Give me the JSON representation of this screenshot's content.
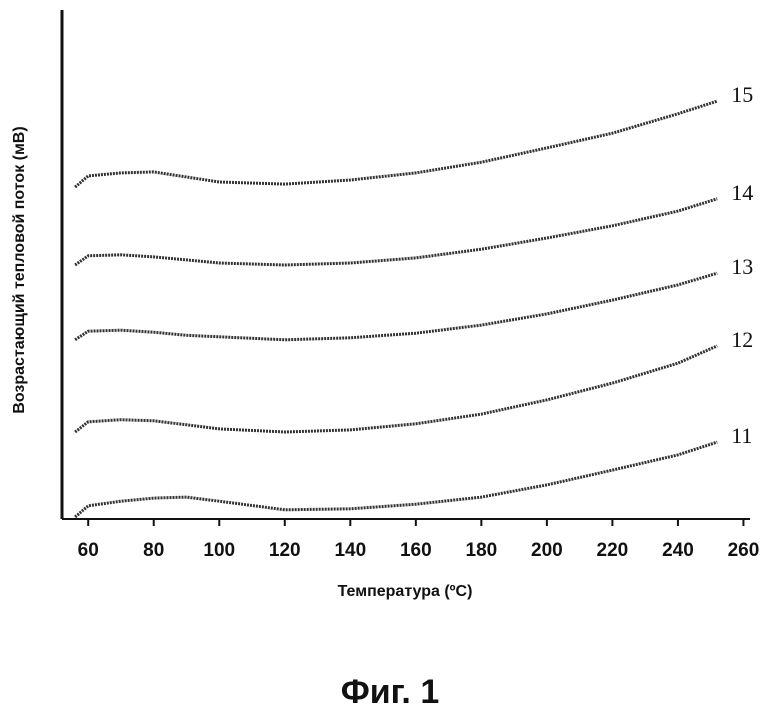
{
  "chart_data": {
    "type": "line",
    "caption": "Фиг. 1",
    "x_label": "Температура (ºC)",
    "y_label": "Возрастающий тепловой поток (мВ)",
    "x": [
      56,
      60,
      70,
      80,
      90,
      100,
      120,
      140,
      160,
      180,
      200,
      220,
      240,
      252
    ],
    "series": [
      {
        "name": "15",
        "color": "#333333",
        "values": [
          65.2,
          67.4,
          68.0,
          68.2,
          67.2,
          66.2,
          65.8,
          66.6,
          68.0,
          70.1,
          72.9,
          75.8,
          79.6,
          82.1
        ]
      },
      {
        "name": "14",
        "color": "#333333",
        "values": [
          49.9,
          51.7,
          51.9,
          51.5,
          50.9,
          50.3,
          49.9,
          50.3,
          51.3,
          53.0,
          55.2,
          57.6,
          60.5,
          62.9
        ]
      },
      {
        "name": "13",
        "color": "#333333",
        "values": [
          35.2,
          36.9,
          37.1,
          36.7,
          36.1,
          35.8,
          35.2,
          35.6,
          36.5,
          38.1,
          40.3,
          43.0,
          46.0,
          48.3
        ]
      },
      {
        "name": "12",
        "color": "#333333",
        "values": [
          17.1,
          19.1,
          19.5,
          19.3,
          18.5,
          17.7,
          17.1,
          17.5,
          18.7,
          20.6,
          23.4,
          26.7,
          30.6,
          34.0
        ]
      },
      {
        "name": "11",
        "color": "#333333",
        "values": [
          0.4,
          2.6,
          3.5,
          4.1,
          4.3,
          3.5,
          1.8,
          2.0,
          2.9,
          4.3,
          6.7,
          9.6,
          12.6,
          15.1
        ]
      }
    ],
    "xlim": [
      52,
      262
    ],
    "ylim": [
      0,
      100
    ],
    "xticks": [
      60,
      80,
      100,
      120,
      140,
      160,
      180,
      200,
      220,
      240,
      260
    ]
  }
}
